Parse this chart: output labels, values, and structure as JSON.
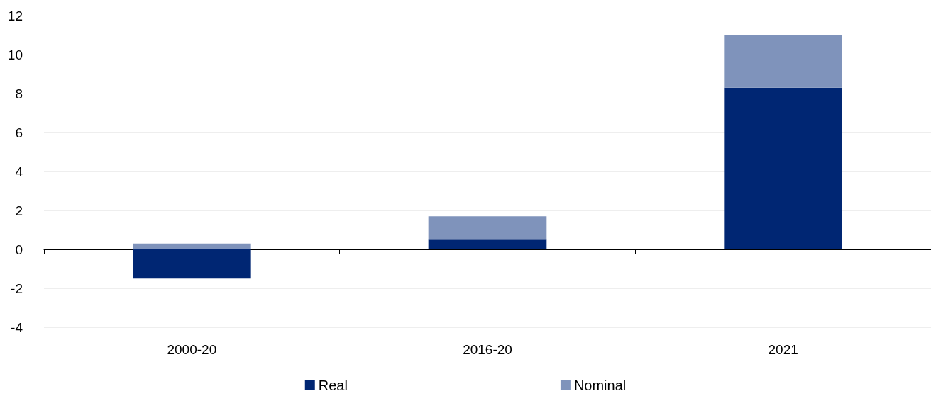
{
  "chart_data": {
    "type": "bar",
    "stacked": true,
    "categories": [
      "2000-20",
      "2016-20",
      "2021"
    ],
    "series": [
      {
        "name": "Real",
        "color": "#002673",
        "values": [
          -1.5,
          0.5,
          8.3
        ]
      },
      {
        "name": "Nominal",
        "color": "#7f93bb",
        "values": [
          0.3,
          1.2,
          2.7
        ]
      }
    ],
    "ylim": [
      -4,
      12
    ],
    "yticks": [
      -4,
      -2,
      0,
      2,
      4,
      6,
      8,
      10,
      12
    ],
    "grid": "y",
    "legend": "bottom"
  }
}
